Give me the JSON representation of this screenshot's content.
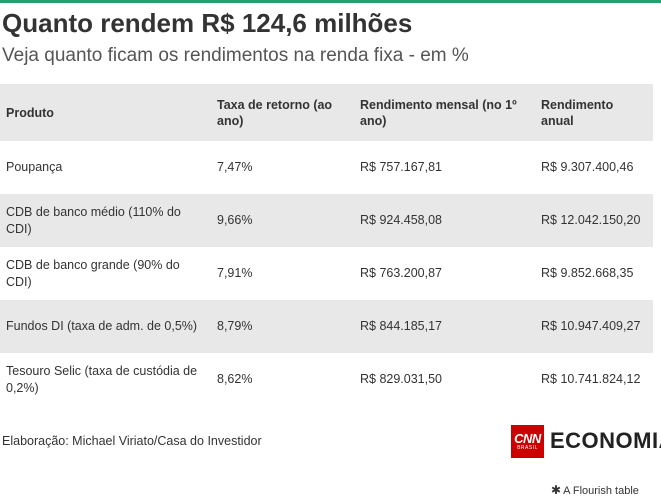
{
  "header": {
    "title": "Quanto rendem R$ 124,6 milhões",
    "subtitle": "Veja quanto ficam os rendimentos na renda fixa - em %"
  },
  "chart_data": {
    "type": "table",
    "title": "Quanto rendem R$ 124,6 milhões",
    "subtitle": "Veja quanto ficam os rendimentos na renda fixa - em %",
    "columns": [
      "Produto",
      "Taxa de retorno (ao ano)",
      "Rendimento mensal (no 1º ano)",
      "Rendimento anual"
    ],
    "rows": [
      [
        "Poupança",
        "7,47%",
        "R$ 757.167,81",
        "R$ 9.307.400,46"
      ],
      [
        "CDB de banco médio (110% do CDI)",
        "9,66%",
        "R$ 924.458,08",
        "R$ 12.042.150,20"
      ],
      [
        "CDB de banco grande (90% do CDI)",
        "7,91%",
        "R$ 763.200,87",
        "R$ 9.852.668,35"
      ],
      [
        "Fundos DI (taxa de adm. de 0,5%)",
        "8,79%",
        "R$ 844.185,17",
        "R$ 10.947.409,27"
      ],
      [
        "Tesouro Selic (taxa de custódia de 0,2%)",
        "8,62%",
        "R$ 829.031,50",
        "R$ 10.741.824,12"
      ]
    ]
  },
  "footer": {
    "credit": "Elaboração: Michael Viriato/Casa do Investidor",
    "logo_cnn": "CNN",
    "logo_brasil": "BRASIL",
    "logo_economia": "ECONOMIA",
    "flourish": "A Flourish table"
  },
  "colors": {
    "title_bar": "#2a9d6f",
    "cnn_red": "#cc0000",
    "stripe": "#e8e8e8"
  }
}
